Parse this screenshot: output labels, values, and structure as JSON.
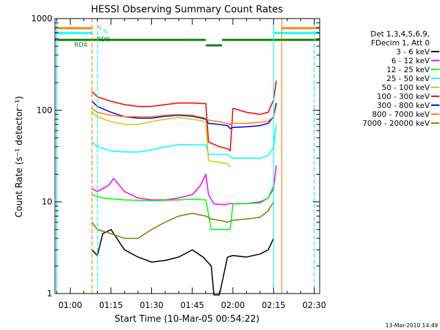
{
  "chart_data": {
    "type": "line",
    "title": "HESSI Observing Summary Count Rates",
    "xlabel": "Start Time (10-Mar-05 00:54:22)",
    "ylabel": "Count Rate (s⁻¹ detector⁻¹)",
    "y_scale": "log",
    "ylim": [
      1,
      1000
    ],
    "xlim": [
      "00:54:22",
      "02:32:00"
    ],
    "x_ticks": [
      "01:00",
      "01:15",
      "01:30",
      "01:45",
      "02:00",
      "02:15",
      "02:30"
    ],
    "y_ticks": [
      "1",
      "10",
      "100",
      "1000"
    ],
    "footer_date": "13-Mar-2010 14:49",
    "legend": {
      "header": [
        "Det 1,3,4,5,6,9,",
        "FDecim 1, Att 0"
      ],
      "placement": "right"
    },
    "series": [
      {
        "name": "3 - 6 keV",
        "color": "#000000",
        "x": [
          "01:08",
          "01:10",
          "01:12",
          "01:15",
          "01:20",
          "01:25",
          "01:30",
          "01:35",
          "01:40",
          "01:45",
          "01:49",
          "01:52",
          "01:53",
          "01:55",
          "01:58",
          "02:00",
          "02:05",
          "02:10",
          "02:13",
          "02:15"
        ],
        "values": [
          3,
          2.6,
          4.5,
          5,
          3,
          2.5,
          2.2,
          2.3,
          2.5,
          3,
          2.5,
          2,
          0,
          0,
          2.5,
          2.6,
          2.5,
          2.7,
          3,
          4
        ]
      },
      {
        "name": "6 - 12 keV",
        "color": "#ff00ff",
        "x": [
          "01:08",
          "01:10",
          "01:14",
          "01:16",
          "01:20",
          "01:25",
          "01:30",
          "01:35",
          "01:40",
          "01:45",
          "01:48",
          "01:50",
          "01:51",
          "01:53",
          "01:57",
          "01:59",
          "02:02",
          "02:05",
          "02:10",
          "02:13",
          "02:15",
          "02:16"
        ],
        "values": [
          14,
          13,
          15,
          18,
          13,
          11,
          10.5,
          10.5,
          11,
          12,
          15,
          20,
          12,
          9.5,
          9.3,
          9.6,
          9.5,
          9.6,
          10,
          11,
          14,
          25
        ]
      },
      {
        "name": "12 - 25 keV",
        "color": "#00ff00",
        "x": [
          "01:08",
          "01:12",
          "01:20",
          "01:30",
          "01:40",
          "01:45",
          "01:50",
          "01:52",
          "01:55",
          "01:59",
          "02:00",
          "02:05",
          "02:10",
          "02:13",
          "02:15"
        ],
        "values": [
          12,
          11,
          10.5,
          10.3,
          10.5,
          10.7,
          10.5,
          5,
          5,
          5,
          9.5,
          9.6,
          9.7,
          11,
          15
        ]
      },
      {
        "name": "25 - 50 keV",
        "color": "#00ffff",
        "x": [
          "01:08",
          "01:10",
          "01:15",
          "01:20",
          "01:25",
          "01:30",
          "01:35",
          "01:40",
          "01:45",
          "01:50",
          "01:51",
          "01:55",
          "01:58",
          "01:59",
          "02:00",
          "02:05",
          "02:10",
          "02:13",
          "02:15",
          "02:16"
        ],
        "values": [
          45,
          40,
          36,
          35,
          35,
          37,
          40,
          42,
          42,
          42,
          33,
          33,
          33,
          31,
          30,
          30,
          30,
          32,
          40,
          70
        ]
      },
      {
        "name": "50 - 100 keV",
        "color": "#cccc00",
        "x": [
          "01:08",
          "01:10",
          "01:15",
          "01:20",
          "01:25",
          "01:30",
          "01:35",
          "01:40",
          "01:45",
          "01:50",
          "01:51",
          "01:55",
          "01:58",
          "01:59"
        ],
        "values": [
          95,
          85,
          75,
          70,
          70,
          75,
          80,
          83,
          80,
          75,
          28,
          27,
          26,
          24
        ]
      },
      {
        "name": "100 - 300 keV",
        "color": "#ff0000",
        "x": [
          "01:08",
          "01:10",
          "01:15",
          "01:20",
          "01:25",
          "01:30",
          "01:35",
          "01:40",
          "01:45",
          "01:50",
          "01:51",
          "01:55",
          "01:58",
          "01:59",
          "02:00",
          "02:05",
          "02:10",
          "02:13",
          "02:15",
          "02:16"
        ],
        "values": [
          160,
          140,
          125,
          115,
          110,
          110,
          115,
          120,
          120,
          118,
          45,
          40,
          38,
          36,
          105,
          95,
          90,
          95,
          130,
          210
        ]
      },
      {
        "name": "300 - 800 keV",
        "color": "#0000ff",
        "x": [
          "01:08",
          "01:10",
          "01:15",
          "01:20",
          "01:25",
          "01:30",
          "01:35",
          "01:40",
          "01:45",
          "01:50",
          "01:51",
          "01:55",
          "01:58",
          "01:59",
          "02:00",
          "02:05",
          "02:10",
          "02:13",
          "02:15",
          "02:16"
        ],
        "values": [
          125,
          110,
          95,
          85,
          82,
          82,
          86,
          88,
          86,
          80,
          72,
          70,
          68,
          63,
          65,
          66,
          68,
          72,
          85,
          120
        ]
      },
      {
        "name": "800 - 7000 keV",
        "color": "#ff8000",
        "x": [
          "01:08",
          "01:10",
          "01:15",
          "01:20",
          "01:25",
          "01:30",
          "01:35",
          "01:40",
          "01:45",
          "01:50",
          "01:51",
          "01:55",
          "01:58",
          "01:59",
          "02:00",
          "02:05",
          "02:10",
          "02:13",
          "02:15",
          "02:16"
        ],
        "values": [
          105,
          95,
          88,
          85,
          85,
          85,
          88,
          90,
          88,
          82,
          78,
          75,
          72,
          70,
          72,
          72,
          74,
          76,
          85,
          110
        ]
      },
      {
        "name": "7000 - 20000 keV",
        "color": "#808000",
        "x": [
          "01:08",
          "01:10",
          "01:15",
          "01:20",
          "01:25",
          "01:30",
          "01:35",
          "01:40",
          "01:45",
          "01:50",
          "01:52",
          "01:55",
          "01:58",
          "02:00",
          "02:05",
          "02:10",
          "02:13",
          "02:15"
        ],
        "values": [
          6,
          5,
          4.5,
          4,
          4,
          5,
          6,
          7,
          7.5,
          7,
          6.5,
          6.3,
          6,
          6.3,
          6.5,
          6.8,
          8,
          10
        ]
      }
    ],
    "flags": [
      {
        "name": "S",
        "color": "#ff8000",
        "segments": [
          [
            "00:54:22",
            "01:08"
          ],
          [
            "02:18",
            "02:32"
          ]
        ]
      },
      {
        "name": "N",
        "color": "#00ffff",
        "segments": [
          [
            "00:54:22",
            "01:08"
          ],
          [
            "02:15",
            "02:32"
          ]
        ]
      },
      {
        "name": "RD0",
        "color": "#008000",
        "segments": [
          [
            "00:54:22",
            "01:50"
          ],
          [
            "01:56",
            "02:32"
          ]
        ]
      },
      {
        "name": "RD4",
        "color": "#008000",
        "segments": [
          [
            "01:50",
            "01:56"
          ]
        ]
      }
    ],
    "vertical_markers": [
      {
        "time": "00:55",
        "color": "#00ffff",
        "style": "solid"
      },
      {
        "time": "01:08",
        "color": "#ff8000",
        "style": "dashed"
      },
      {
        "time": "01:10",
        "color": "#00ffff",
        "style": "dashed"
      },
      {
        "time": "02:15",
        "color": "#00ffff",
        "style": "solid"
      },
      {
        "time": "02:18",
        "color": "#ff8000",
        "style": "solid"
      },
      {
        "time": "02:30",
        "color": "#ff8000",
        "style": "dashed"
      },
      {
        "time": "02:30",
        "color": "#00ffff",
        "style": "dashed"
      }
    ]
  }
}
